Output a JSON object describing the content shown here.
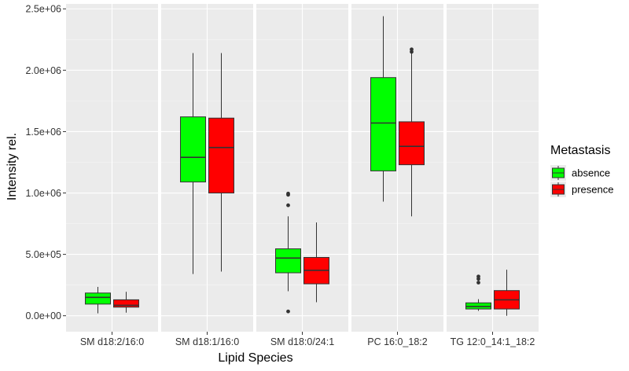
{
  "chart_data": {
    "type": "boxplot",
    "xlabel": "Lipid Species",
    "ylabel": "Intensity rel.",
    "ylim": [
      -130000,
      2540000
    ],
    "yticks": [
      {
        "value": 0,
        "label": "0.0e+00"
      },
      {
        "value": 500000,
        "label": "5.0e+05"
      },
      {
        "value": 1000000,
        "label": "1.0e+06"
      },
      {
        "value": 1500000,
        "label": "1.5e+06"
      },
      {
        "value": 2000000,
        "label": "2.0e+06"
      },
      {
        "value": 2500000,
        "label": "2.5e+06"
      }
    ],
    "grid": true,
    "legend_position": "right",
    "legend_title": "Metastasis",
    "colors": {
      "absence": "#00ff00",
      "presence": "#ff0000",
      "panel_bg": "#ebebeb",
      "grid": "#ffffff"
    },
    "series": [
      {
        "name": "absence",
        "color": "#00ff00"
      },
      {
        "name": "presence",
        "color": "#ff0000"
      }
    ],
    "panels": [
      {
        "label": "SM d18:2/16:0",
        "boxes": [
          {
            "series": "absence",
            "min": 20000,
            "q1": 95000,
            "median": 150000,
            "q3": 185000,
            "max": 235000,
            "outliers": []
          },
          {
            "series": "presence",
            "min": 25000,
            "q1": 70000,
            "median": 85000,
            "q3": 130000,
            "max": 195000,
            "outliers": []
          }
        ]
      },
      {
        "label": "SM d18:1/16:0",
        "boxes": [
          {
            "series": "absence",
            "min": 340000,
            "q1": 1090000,
            "median": 1290000,
            "q3": 1620000,
            "max": 2140000,
            "outliers": []
          },
          {
            "series": "presence",
            "min": 360000,
            "q1": 1000000,
            "median": 1370000,
            "q3": 1610000,
            "max": 2140000,
            "outliers": []
          }
        ]
      },
      {
        "label": "SM d18:0/24:1",
        "boxes": [
          {
            "series": "absence",
            "min": 200000,
            "q1": 350000,
            "median": 470000,
            "q3": 545000,
            "max": 810000,
            "outliers": [
              35000,
              900000,
              985000,
              995000
            ]
          },
          {
            "series": "presence",
            "min": 110000,
            "q1": 260000,
            "median": 370000,
            "q3": 475000,
            "max": 760000,
            "outliers": []
          }
        ]
      },
      {
        "label": "PC 16:0_18:2",
        "boxes": [
          {
            "series": "absence",
            "min": 930000,
            "q1": 1180000,
            "median": 1570000,
            "q3": 1940000,
            "max": 2440000,
            "outliers": []
          },
          {
            "series": "presence",
            "min": 810000,
            "q1": 1230000,
            "median": 1380000,
            "q3": 1580000,
            "max": 2150000,
            "outliers": [
              2150000,
              2170000
            ]
          }
        ]
      },
      {
        "label": "TG 12:0_14:1_18:2",
        "boxes": [
          {
            "series": "absence",
            "min": 40000,
            "q1": 55000,
            "median": 75000,
            "q3": 105000,
            "max": 135000,
            "outliers": [
              270000,
              300000,
              320000
            ]
          },
          {
            "series": "presence",
            "min": 0,
            "q1": 55000,
            "median": 130000,
            "q3": 205000,
            "max": 375000,
            "outliers": []
          }
        ]
      }
    ]
  }
}
